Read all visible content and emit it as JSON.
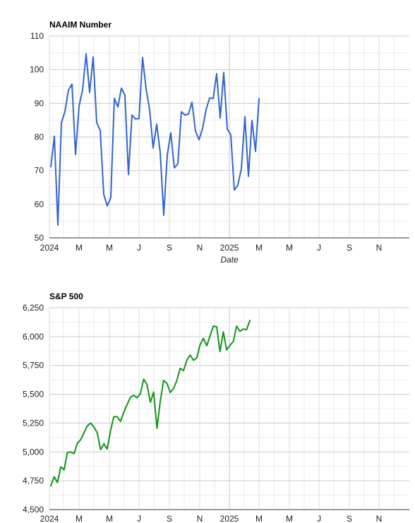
{
  "chart_data": [
    {
      "type": "line",
      "title": "NAAIM Number",
      "xlabel": "Date",
      "ylabel": "",
      "ylim": [
        50,
        110
      ],
      "yticks": [
        "110",
        "100",
        "90",
        "80",
        "70",
        "60",
        "50"
      ],
      "xticks": [
        "2024",
        "M",
        "M",
        "J",
        "S",
        "N",
        "2025",
        "M",
        "M",
        "J",
        "S",
        "N"
      ],
      "grid": true,
      "line_color": "#3366cc",
      "series": [
        {
          "values": [
            71.1,
            80.2,
            53.8,
            84.2,
            87.6,
            93.9,
            95.7,
            74.8,
            89.1,
            94.0,
            104.7,
            93.2,
            103.8,
            84.3,
            81.9,
            62.9,
            59.5,
            62.0,
            91.5,
            88.9,
            94.5,
            92.4,
            68.8,
            86.5,
            85.3,
            85.5,
            103.6,
            94.3,
            88.1,
            76.7,
            83.8,
            75.4,
            56.7,
            74.7,
            81.2,
            70.8,
            72.0,
            87.5,
            86.5,
            86.8,
            90.3,
            81.7,
            79.2,
            82.5,
            88.1,
            91.6,
            91.4,
            98.8,
            85.6,
            99.2,
            82.4,
            80.6,
            64.2,
            65.7,
            70.6,
            86.0,
            68.3,
            84.9,
            75.7,
            91.4
          ]
        }
      ]
    },
    {
      "type": "line",
      "title": "S&P 500",
      "xlabel": "",
      "ylabel": "",
      "ylim": [
        4500,
        6250
      ],
      "yticks": [
        "6,250",
        "6,000",
        "5,750",
        "5,500",
        "5,250",
        "5,000",
        "4,750",
        "4,500"
      ],
      "xticks": [
        "2024",
        "M",
        "M",
        "J",
        "S",
        "N",
        "2025",
        "M",
        "M",
        "J",
        "S",
        "N"
      ],
      "grid": true,
      "line_color": "#109618",
      "series": [
        {
          "values": [
            4705,
            4785,
            4735,
            4870,
            4845,
            4995,
            5000,
            4985,
            5075,
            5105,
            5165,
            5225,
            5250,
            5215,
            5165,
            5020,
            5070,
            5025,
            5185,
            5305,
            5305,
            5265,
            5345,
            5410,
            5475,
            5490,
            5470,
            5505,
            5630,
            5585,
            5430,
            5520,
            5205,
            5440,
            5620,
            5595,
            5515,
            5550,
            5620,
            5725,
            5705,
            5795,
            5840,
            5795,
            5815,
            5930,
            5985,
            5920,
            6005,
            6090,
            6085,
            5870,
            6040,
            5885,
            5925,
            5955,
            6090,
            6045,
            6065,
            6060,
            6140
          ]
        }
      ]
    }
  ]
}
